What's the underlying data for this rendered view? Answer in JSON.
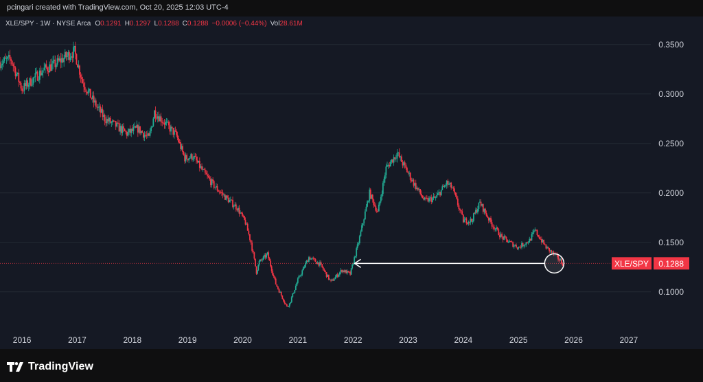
{
  "header": {
    "attribution": "pcingari created with TradingView.com, Oct 20, 2025 12:03 UTC-4"
  },
  "legend": {
    "symbol": "XLE/SPY · 1W · NYSE Arca",
    "open_label": "O",
    "open": "0.1291",
    "high_label": "H",
    "high": "0.1297",
    "low_label": "L",
    "low": "0.1288",
    "close_label": "C",
    "close": "0.1288",
    "change": "−0.0006 (−0.44%)",
    "vol_label": "Vol",
    "vol": "28.61M"
  },
  "price_tag": {
    "symbol": "XLE/SPY",
    "value": "0.1288",
    "color": "#f23645"
  },
  "footer": {
    "logo_text": "TradingView"
  },
  "colors": {
    "up": "#22ab94",
    "down": "#f23645",
    "background": "#151924",
    "grid": "#252a35",
    "arrow": "#ffffff"
  },
  "chart_data": {
    "type": "line",
    "style": "candlestick",
    "series": [
      {
        "x": [
          2015.6,
          2015.8,
          2016.0,
          2016.2,
          2016.4,
          2016.6,
          2016.8,
          2016.95,
          2017.1,
          2017.3,
          2017.5,
          2017.7,
          2017.9,
          2018.1,
          2018.3,
          2018.4,
          2018.6,
          2018.8,
          2018.95,
          2019.1,
          2019.3,
          2019.5,
          2019.7,
          2019.9,
          2020.05,
          2020.15,
          2020.25,
          2020.3,
          2020.45,
          2020.6,
          2020.8,
          2020.85,
          2021.0,
          2021.2,
          2021.4,
          2021.6,
          2021.8,
          2021.95,
          2022.1,
          2022.3,
          2022.45,
          2022.6,
          2022.8,
          2022.9,
          2023.1,
          2023.3,
          2023.5,
          2023.7,
          2023.8,
          2024.0,
          2024.15,
          2024.3,
          2024.5,
          2024.7,
          2024.9,
          2025.0,
          2025.2,
          2025.3,
          2025.5,
          2025.7,
          2025.8
        ],
        "values": [
          0.332,
          0.335,
          0.305,
          0.315,
          0.325,
          0.33,
          0.338,
          0.343,
          0.312,
          0.292,
          0.275,
          0.268,
          0.26,
          0.265,
          0.255,
          0.282,
          0.27,
          0.258,
          0.235,
          0.237,
          0.22,
          0.206,
          0.195,
          0.185,
          0.17,
          0.15,
          0.12,
          0.13,
          0.138,
          0.108,
          0.085,
          0.088,
          0.112,
          0.135,
          0.128,
          0.11,
          0.122,
          0.118,
          0.15,
          0.2,
          0.18,
          0.225,
          0.24,
          0.23,
          0.21,
          0.192,
          0.195,
          0.21,
          0.205,
          0.172,
          0.172,
          0.19,
          0.17,
          0.155,
          0.148,
          0.145,
          0.152,
          0.162,
          0.145,
          0.135,
          0.1288
        ]
      }
    ],
    "xlim": [
      2015.6,
      2027.4
    ],
    "ylim": [
      0.07,
      0.37
    ],
    "x_ticks": [
      "2016",
      "2017",
      "2018",
      "2019",
      "2020",
      "2021",
      "2022",
      "2023",
      "2024",
      "2025",
      "2026",
      "2027"
    ],
    "y_ticks": [
      "0.1000",
      "0.1500",
      "0.2000",
      "0.2500",
      "0.3000",
      "0.3500"
    ],
    "grid": true,
    "annotations": [
      {
        "type": "arrow",
        "from": [
          2025.65,
          0.1288
        ],
        "to": [
          2022.03,
          0.1288
        ]
      },
      {
        "type": "circle",
        "center": [
          2025.65,
          0.1288
        ]
      }
    ]
  }
}
